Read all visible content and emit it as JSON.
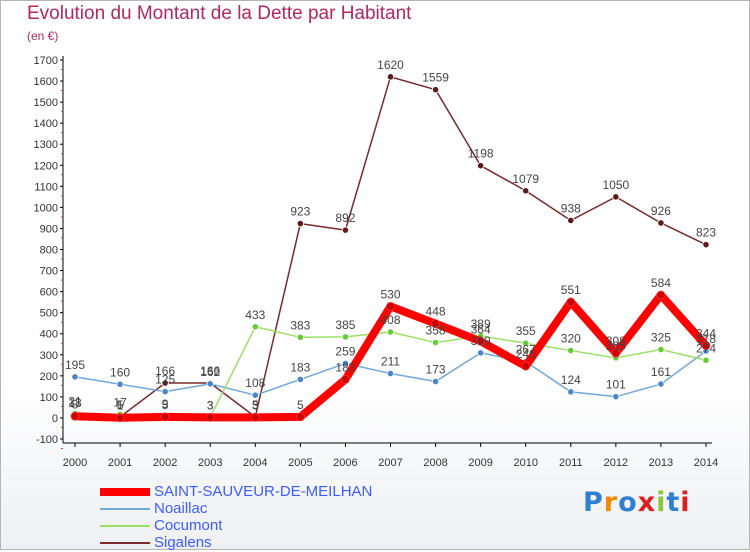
{
  "title": "Evolution du Montant de la Dette par Habitant",
  "subtitle": "(en €)",
  "logo": "Proxiti",
  "chart_data": {
    "type": "line",
    "x": [
      "2000",
      "2001",
      "2002",
      "2003",
      "2004",
      "2005",
      "2006",
      "2007",
      "2008",
      "2009",
      "2010",
      "2011",
      "2012",
      "2013",
      "2014"
    ],
    "ylim": [
      -100,
      1700
    ],
    "yticks": [
      -100,
      0,
      100,
      200,
      300,
      400,
      500,
      600,
      700,
      800,
      900,
      1000,
      1100,
      1200,
      1300,
      1400,
      1500,
      1600,
      1700
    ],
    "grid": false,
    "legend_position": "bottom-left",
    "series": [
      {
        "name": "SAINT-SAUVEUR-DE-MEILHAN",
        "color": "#ff0000",
        "marker": "#cc0000",
        "values": [
          8,
          1,
          5,
          3,
          3,
          5,
          183,
          530,
          448,
          364,
          246,
          551,
          308,
          584,
          344
        ],
        "bold": true
      },
      {
        "name": "Noaillac",
        "color": "#6fa8dc",
        "marker": "#4a86c8",
        "values": [
          195,
          160,
          125,
          162,
          108,
          183,
          259,
          211,
          173,
          309,
          267,
          124,
          101,
          161,
          318
        ]
      },
      {
        "name": "Cocumont",
        "color": "#99e066",
        "marker": "#66cc33",
        "values": [
          21,
          17,
          9,
          3,
          433,
          383,
          385,
          408,
          358,
          389,
          355,
          320,
          285,
          325,
          274
        ]
      },
      {
        "name": "Sigalens",
        "color": "#7a2a2a",
        "marker": "#5c1a1a",
        "values": [
          13,
          5,
          166,
          166,
          5,
          923,
          892,
          1620,
          1559,
          1198,
          1079,
          938,
          1050,
          926,
          823
        ]
      }
    ]
  }
}
